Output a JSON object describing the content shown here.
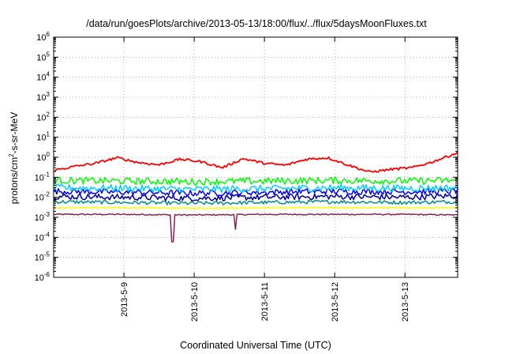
{
  "chart_data": {
    "type": "line",
    "title": "/data/run/goesPlots/archive/2013-05-13/18:00/flux/../flux/5daysMoonFluxes.txt",
    "xlabel": "Coordinated Universal Time (UTC)",
    "ylabel": {
      "prefix": "protons/cm",
      "sup": "2",
      "suffix": "-s-sr-MeV"
    },
    "yscale": "log",
    "ylim": [
      1e-06,
      1000000.0
    ],
    "xlim": [
      "2013-05-08T01:00",
      "2013-05-13T19:00"
    ],
    "grid": true,
    "legend": "none",
    "y_tick_values": [
      -6,
      -5,
      -4,
      -3,
      -2,
      -1,
      0,
      1,
      2,
      3,
      4,
      5,
      6
    ],
    "y_ticks": [
      {
        "base": "10",
        "exp": "-6"
      },
      {
        "base": "10",
        "exp": "-5"
      },
      {
        "base": "10",
        "exp": "-4"
      },
      {
        "base": "10",
        "exp": "-3"
      },
      {
        "base": "10",
        "exp": "-2"
      },
      {
        "base": "10",
        "exp": "-1"
      },
      {
        "base": "10",
        "exp": "0"
      },
      {
        "base": "10",
        "exp": "1"
      },
      {
        "base": "10",
        "exp": "2"
      },
      {
        "base": "10",
        "exp": "3"
      },
      {
        "base": "10",
        "exp": "4"
      },
      {
        "base": "10",
        "exp": "5"
      },
      {
        "base": "10",
        "exp": "6"
      }
    ],
    "x_tick_days": [
      1,
      2,
      3,
      4,
      5
    ],
    "x_ticks": [
      "2013-5-9",
      "2013-5-10",
      "2013-5-11",
      "2013-5-12",
      "2013-5-13"
    ],
    "series": [
      {
        "color": "#ff0000",
        "x_days": [
          0,
          0.3,
          0.6,
          0.9,
          1.2,
          1.5,
          1.8,
          2.1,
          2.4,
          2.7,
          3.0,
          3.3,
          3.6,
          3.9,
          4.2,
          4.5,
          4.8,
          5.1,
          5.4,
          5.75
        ],
        "y": [
          0.22,
          0.35,
          0.5,
          0.95,
          0.55,
          0.42,
          0.8,
          0.6,
          0.3,
          0.85,
          0.5,
          0.4,
          0.8,
          0.95,
          0.4,
          0.18,
          0.25,
          0.3,
          0.6,
          1.7
        ],
        "noise": 0.12,
        "spikes": []
      },
      {
        "color": "#00ff00",
        "x_days": [
          0,
          1,
          2,
          3,
          4,
          5,
          5.75
        ],
        "y": [
          0.07,
          0.065,
          0.06,
          0.065,
          0.07,
          0.065,
          0.07
        ],
        "noise": 0.35,
        "spikes": []
      },
      {
        "color": "#00d0ff",
        "x_days": [
          0,
          1,
          2,
          3,
          4,
          5,
          5.75
        ],
        "y": [
          0.03,
          0.028,
          0.025,
          0.027,
          0.03,
          0.028,
          0.03
        ],
        "noise": 0.35,
        "spikes": []
      },
      {
        "color": "#0000ff",
        "x_days": [
          0,
          1,
          2,
          3,
          4,
          5,
          5.75
        ],
        "y": [
          0.02,
          0.018,
          0.016,
          0.018,
          0.02,
          0.019,
          0.02
        ],
        "noise": 0.3,
        "spikes": []
      },
      {
        "color": "#0000a0",
        "x_days": [
          0,
          1,
          2,
          3,
          4,
          5,
          5.75
        ],
        "y": [
          0.011,
          0.01,
          0.009,
          0.01,
          0.011,
          0.01,
          0.012
        ],
        "noise": 0.3,
        "spikes": []
      },
      {
        "color": "#008b8b",
        "x_days": [
          0,
          1,
          2,
          3,
          4,
          5,
          5.75
        ],
        "y": [
          0.006,
          0.0055,
          0.005,
          0.0055,
          0.006,
          0.0055,
          0.006
        ],
        "noise": 0.18,
        "spikes": []
      },
      {
        "color": "#ffff00",
        "x_days": [
          0,
          1,
          2,
          3,
          4,
          5,
          5.75
        ],
        "y": [
          0.003,
          0.003,
          0.0028,
          0.003,
          0.003,
          0.003,
          0.003
        ],
        "noise": 0.06,
        "spikes": []
      },
      {
        "color": "#8b2252",
        "x_days": [
          0,
          1,
          2,
          3,
          4,
          5,
          5.75
        ],
        "y": [
          0.0014,
          0.0014,
          0.0013,
          0.0014,
          0.0014,
          0.0014,
          0.0013
        ],
        "noise": 0.06,
        "spikes": [
          {
            "x": 1.69,
            "y": 6e-05
          },
          {
            "x": 2.58,
            "y": 0.00025
          }
        ]
      }
    ]
  }
}
